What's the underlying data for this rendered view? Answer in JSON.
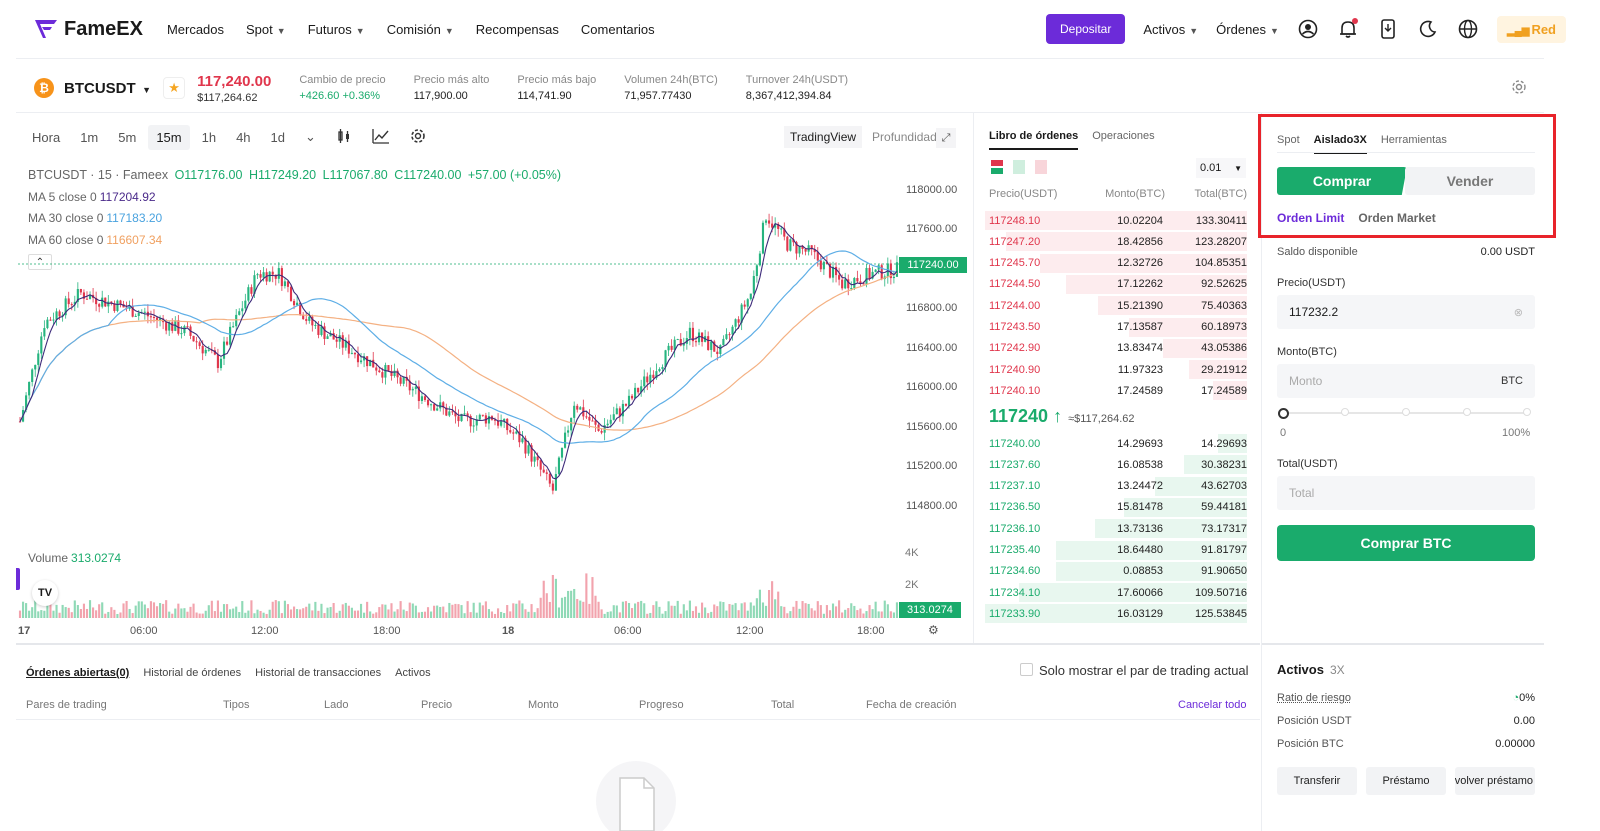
{
  "header": {
    "brand": "FameEX",
    "nav": [
      {
        "label": "Mercados",
        "caret": false
      },
      {
        "label": "Spot",
        "caret": true
      },
      {
        "label": "Futuros",
        "caret": true
      },
      {
        "label": "Comisión",
        "caret": true
      },
      {
        "label": "Recompensas",
        "caret": false
      },
      {
        "label": "Comentarios",
        "caret": false
      }
    ],
    "deposit": "Depositar",
    "assets": "Activos",
    "orders": "Órdenes",
    "theme_badge": "Red"
  },
  "ticker": {
    "pair": "BTCUSDT",
    "price": "117,240.00",
    "price_usd": "$117,264.62",
    "stats": [
      {
        "label": "Cambio de precio",
        "value": "+426.60 +0.36%",
        "green": true
      },
      {
        "label": "Precio más alto",
        "value": "117,900.00",
        "green": false
      },
      {
        "label": "Precio más bajo",
        "value": "114,741.90",
        "green": false
      },
      {
        "label": "Volumen 24h(BTC)",
        "value": "71,957.77430",
        "green": false
      },
      {
        "label": "Turnover 24h(USDT)",
        "value": "8,367,412,394.84",
        "green": false
      }
    ]
  },
  "chart": {
    "intervals": [
      "Hora",
      "1m",
      "5m",
      "15m",
      "1h",
      "4h",
      "1d"
    ],
    "active_interval": "15m",
    "view_tabs": [
      "TradingView",
      "Profundidad"
    ],
    "ohlc_line": "BTCUSDT · 15 · Fameex",
    "o": "O117176.00",
    "h": "H117249.20",
    "l": "L117067.80",
    "c": "C117240.00",
    "chg": "+57.00 (+0.05%)",
    "ma5_label": "MA 5 close 0",
    "ma5": "117204.92",
    "ma30_label": "MA 30 close 0",
    "ma30": "117183.20",
    "ma60_label": "MA 60 close 0",
    "ma60": "116607.34",
    "price_axis": [
      "118000.00",
      "117600.00",
      "116800.00",
      "116400.00",
      "116000.00",
      "115600.00",
      "115200.00",
      "114800.00"
    ],
    "last_price_tag": "117240.00",
    "volume_label": "Volume",
    "volume_value": "313.0274",
    "vol_axis": [
      "4K",
      "2K"
    ],
    "vol_tag": "313.0274",
    "time_axis": [
      "17",
      "06:00",
      "12:00",
      "18:00",
      "18",
      "06:00",
      "12:00",
      "18:00"
    ]
  },
  "orderbook": {
    "tabs": [
      "Libro de órdenes",
      "Operaciones"
    ],
    "precision": "0.01",
    "headers": [
      "Precio(USDT)",
      "Monto(BTC)",
      "Total(BTC)"
    ],
    "asks": [
      {
        "p": "117248.10",
        "m": "10.02204",
        "t": "133.30411",
        "depth": 1.0
      },
      {
        "p": "117247.20",
        "m": "18.42856",
        "t": "123.28207",
        "depth": 0.92
      },
      {
        "p": "117245.70",
        "m": "12.32726",
        "t": "104.85351",
        "depth": 0.79
      },
      {
        "p": "117244.50",
        "m": "17.12262",
        "t": "92.52625",
        "depth": 0.69
      },
      {
        "p": "117244.00",
        "m": "15.21390",
        "t": "75.40363",
        "depth": 0.57
      },
      {
        "p": "117243.50",
        "m": "17.13587",
        "t": "60.18973",
        "depth": 0.45
      },
      {
        "p": "117242.90",
        "m": "13.83474",
        "t": "43.05386",
        "depth": 0.32
      },
      {
        "p": "117240.90",
        "m": "11.97323",
        "t": "29.21912",
        "depth": 0.22
      },
      {
        "p": "117240.10",
        "m": "17.24589",
        "t": "17.24589",
        "depth": 0.13
      }
    ],
    "mid": "117240",
    "mid_usd": "≈$117,264.62",
    "bids": [
      {
        "p": "117240.00",
        "m": "14.29693",
        "t": "14.29693",
        "depth": 0.11
      },
      {
        "p": "117237.60",
        "m": "16.08538",
        "t": "30.38231",
        "depth": 0.24
      },
      {
        "p": "117237.10",
        "m": "13.24472",
        "t": "43.62703",
        "depth": 0.35
      },
      {
        "p": "117236.50",
        "m": "15.81478",
        "t": "59.44181",
        "depth": 0.47
      },
      {
        "p": "117236.10",
        "m": "13.73136",
        "t": "73.17317",
        "depth": 0.58
      },
      {
        "p": "117235.40",
        "m": "18.64480",
        "t": "91.81797",
        "depth": 0.73
      },
      {
        "p": "117234.60",
        "m": "0.08853",
        "t": "91.90650",
        "depth": 0.73
      },
      {
        "p": "117234.10",
        "m": "17.60066",
        "t": "109.50716",
        "depth": 0.87
      },
      {
        "p": "117233.90",
        "m": "16.03129",
        "t": "125.53845",
        "depth": 1.0
      }
    ]
  },
  "trade": {
    "tabs": [
      "Spot",
      "Aislado3X",
      "Herramientas"
    ],
    "buy": "Comprar",
    "sell": "Vender",
    "order_limit": "Orden Limit",
    "order_market": "Orden Market",
    "available_label": "Saldo disponible",
    "available_value": "0.00 USDT",
    "price_label": "Precio(USDT)",
    "price_value": "117232.2",
    "amount_label": "Monto(BTC)",
    "amount_placeholder": "Monto",
    "amount_unit": "BTC",
    "slider_min": "0",
    "slider_max": "100%",
    "total_label": "Total(USDT)",
    "total_placeholder": "Total",
    "submit": "Comprar BTC"
  },
  "orders": {
    "tabs": [
      "Órdenes abiertas(0)",
      "Historial de órdenes",
      "Historial de transacciones",
      "Activos"
    ],
    "only_current": "Solo mostrar el par de trading actual",
    "columns": [
      "Pares de trading",
      "Tipos",
      "Lado",
      "Precio",
      "Monto",
      "Progreso",
      "Total",
      "Fecha de creación"
    ],
    "cancel_all": "Cancelar todo"
  },
  "assets": {
    "title": "Activos",
    "leverage": "3X",
    "rows": [
      {
        "label": "Ratio de riesgo",
        "value": "0%"
      },
      {
        "label": "Posición USDT",
        "value": "0.00"
      },
      {
        "label": "Posición BTC",
        "value": "0.00000"
      }
    ],
    "buttons": [
      "Transferir",
      "Préstamo",
      "Devolver préstamo"
    ]
  }
}
